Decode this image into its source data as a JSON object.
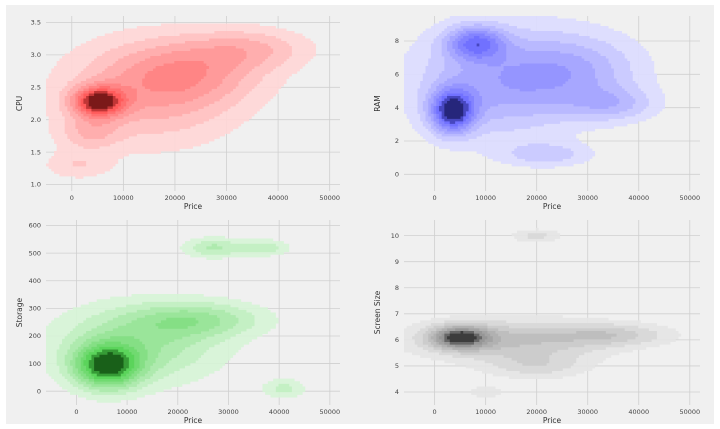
{
  "chart_data": [
    {
      "type": "kde",
      "xlabel": "Price",
      "ylabel": "CPU",
      "x_ticks": [
        0,
        10000,
        20000,
        30000,
        40000,
        50000
      ],
      "y_ticks": [
        1.0,
        1.5,
        2.0,
        2.5,
        3.0,
        3.5
      ],
      "xlim": [
        -5000,
        52000
      ],
      "ylim": [
        0.9,
        3.6
      ],
      "color": "#ff3030",
      "grid": true,
      "density_blobs": [
        {
          "x": 15000,
          "y": 2.4,
          "sx": 12000,
          "sy": 0.55,
          "w": 0.9
        },
        {
          "x": 23000,
          "y": 2.75,
          "sx": 10000,
          "sy": 0.35,
          "w": 0.8
        },
        {
          "x": 35000,
          "y": 3.1,
          "sx": 8000,
          "sy": 0.22,
          "w": 0.65
        },
        {
          "x": 5200,
          "y": 2.28,
          "sx": 3500,
          "sy": 0.16,
          "w": 2.2
        },
        {
          "x": 3500,
          "y": 1.8,
          "sx": 4000,
          "sy": 0.18,
          "w": 0.6
        },
        {
          "x": 1000,
          "y": 1.3,
          "sx": 4500,
          "sy": 0.15,
          "w": 0.45
        }
      ]
    },
    {
      "type": "kde",
      "xlabel": "Price",
      "ylabel": "RAM",
      "x_ticks": [
        0,
        10000,
        20000,
        30000,
        40000,
        50000
      ],
      "y_ticks": [
        0,
        2,
        4,
        6,
        8
      ],
      "xlim": [
        -6000,
        52000
      ],
      "ylim": [
        -1,
        9.5
      ],
      "color": "#4b4bff",
      "grid": true,
      "density_blobs": [
        {
          "x": 12000,
          "y": 5.5,
          "sx": 11000,
          "sy": 2.2,
          "w": 0.9
        },
        {
          "x": 28000,
          "y": 6.2,
          "sx": 9000,
          "sy": 1.6,
          "w": 0.7
        },
        {
          "x": 35000,
          "y": 4.2,
          "sx": 6000,
          "sy": 0.7,
          "w": 0.55
        },
        {
          "x": 3500,
          "y": 3.8,
          "sx": 3000,
          "sy": 0.9,
          "w": 1.8
        },
        {
          "x": 8000,
          "y": 7.9,
          "sx": 4000,
          "sy": 0.7,
          "w": 1.2
        },
        {
          "x": 22000,
          "y": 1.2,
          "sx": 6000,
          "sy": 0.5,
          "w": 0.5
        }
      ]
    },
    {
      "type": "kde",
      "xlabel": "Price",
      "ylabel": "Storage",
      "x_ticks": [
        0,
        10000,
        20000,
        30000,
        40000,
        50000
      ],
      "y_ticks": [
        0,
        100,
        200,
        300,
        400,
        500,
        600
      ],
      "xlim": [
        -6000,
        52000
      ],
      "ylim": [
        -50,
        620
      ],
      "color": "#30c830",
      "grid": true,
      "density_blobs": [
        {
          "x": 12000,
          "y": 170,
          "sx": 11000,
          "sy": 95,
          "w": 0.9
        },
        {
          "x": 24000,
          "y": 260,
          "sx": 9000,
          "sy": 45,
          "w": 0.8
        },
        {
          "x": 6000,
          "y": 90,
          "sx": 4500,
          "sy": 55,
          "w": 1.9
        },
        {
          "x": 27000,
          "y": 520,
          "sx": 4000,
          "sy": 25,
          "w": 0.7
        },
        {
          "x": 37000,
          "y": 520,
          "sx": 3500,
          "sy": 20,
          "w": 0.6
        },
        {
          "x": 41000,
          "y": 10,
          "sx": 3000,
          "sy": 25,
          "w": 0.5
        }
      ]
    },
    {
      "type": "kde",
      "xlabel": "Price",
      "ylabel": "Screen Size",
      "x_ticks": [
        0,
        10000,
        20000,
        30000,
        40000,
        50000
      ],
      "y_ticks": [
        4,
        5,
        6,
        7,
        8,
        9,
        10
      ],
      "xlim": [
        -6000,
        52000
      ],
      "ylim": [
        3.5,
        10.6
      ],
      "color": "#7a7a7a",
      "grid": true,
      "density_blobs": [
        {
          "x": 15000,
          "y": 6.0,
          "sx": 13000,
          "sy": 0.55,
          "w": 0.9
        },
        {
          "x": 35000,
          "y": 6.2,
          "sx": 8000,
          "sy": 0.3,
          "w": 0.65
        },
        {
          "x": 5000,
          "y": 6.1,
          "sx": 4000,
          "sy": 0.3,
          "w": 1.8
        },
        {
          "x": 20000,
          "y": 5.0,
          "sx": 7000,
          "sy": 0.35,
          "w": 0.5
        },
        {
          "x": 20000,
          "y": 10.0,
          "sx": 3500,
          "sy": 0.18,
          "w": 0.5
        },
        {
          "x": 10000,
          "y": 4.0,
          "sx": 2500,
          "sy": 0.15,
          "w": 0.4
        }
      ]
    }
  ]
}
